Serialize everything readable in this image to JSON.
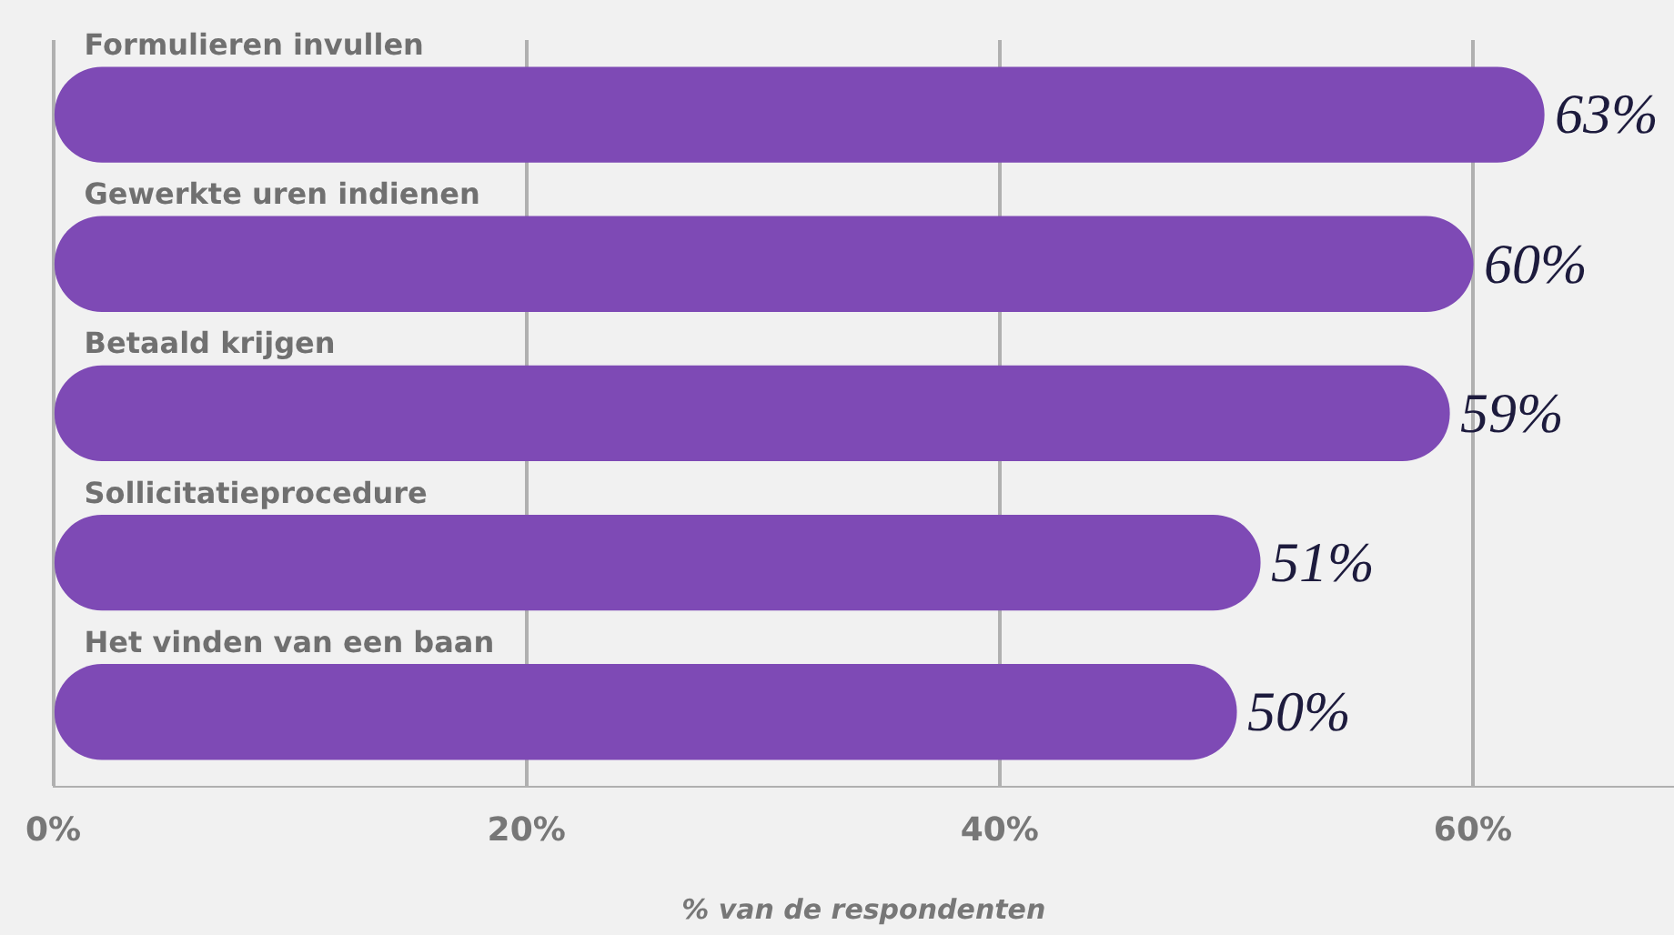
{
  "chart_data": {
    "type": "bar",
    "orientation": "horizontal",
    "xlabel": "% van de respondenten",
    "categories": [
      "Formulieren invullen",
      "Gewerkte uren indienen",
      "Betaald krijgen",
      "Sollicitatieprocedure",
      "Het vinden van een baan"
    ],
    "values": [
      63,
      60,
      59,
      51,
      50
    ],
    "value_labels": [
      "63%",
      "60%",
      "59%",
      "51%",
      "50%"
    ],
    "color": "#7e4ab5",
    "xlim": [
      0,
      68.5
    ],
    "xticks": [
      {
        "value": 0,
        "label": "0%"
      },
      {
        "value": 20,
        "label": "20%"
      },
      {
        "value": 40,
        "label": "40%"
      },
      {
        "value": 60,
        "label": "60%"
      }
    ],
    "grid": "x",
    "legend": false
  }
}
